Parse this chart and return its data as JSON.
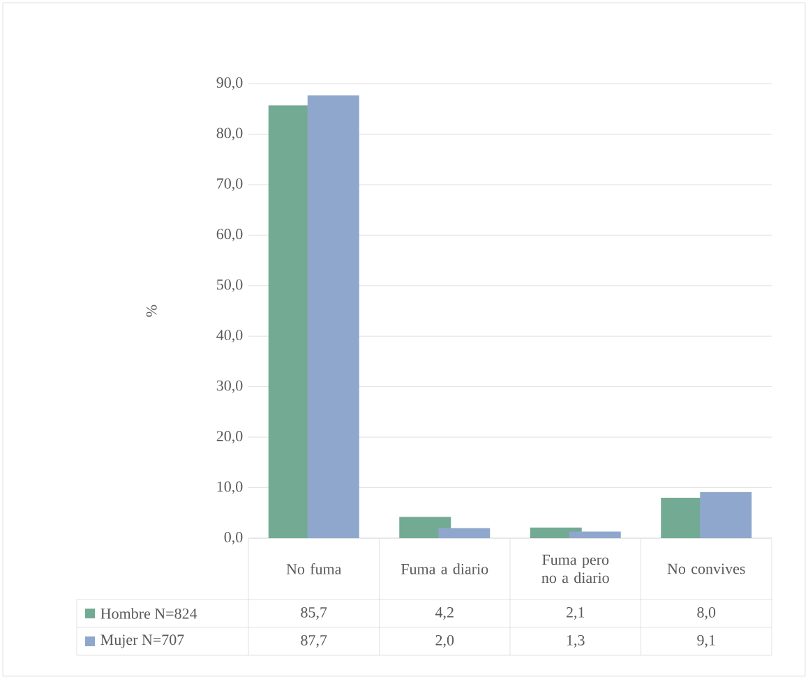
{
  "chart_data": {
    "type": "bar",
    "ylabel": "%",
    "categories": [
      "No fuma",
      "Fuma a diario",
      "Fuma pero no a diario",
      "No convives"
    ],
    "series": [
      {
        "name": "Hombre N=824",
        "color": "#72aa93",
        "values": [
          85.7,
          4.2,
          2.1,
          8.0
        ],
        "value_labels": [
          "85,7",
          "4,2",
          "2,1",
          "8,0"
        ]
      },
      {
        "name": "Mujer N=707",
        "color": "#8fa7cc",
        "values": [
          87.7,
          2.0,
          1.3,
          9.1
        ],
        "value_labels": [
          "87,7",
          "2,0",
          "1,3",
          "9,1"
        ]
      }
    ],
    "ylim": [
      0,
      90
    ],
    "yticks": [
      {
        "value": 0,
        "label": "0,0"
      },
      {
        "value": 10,
        "label": "10,0"
      },
      {
        "value": 20,
        "label": "20,0"
      },
      {
        "value": 30,
        "label": "30,0"
      },
      {
        "value": 40,
        "label": "40,0"
      },
      {
        "value": 50,
        "label": "50,0"
      },
      {
        "value": 60,
        "label": "60,0"
      },
      {
        "value": 70,
        "label": "70,0"
      },
      {
        "value": 80,
        "label": "80,0"
      },
      {
        "value": 90,
        "label": "90,0"
      }
    ],
    "grid": "y",
    "legend": "bottom"
  }
}
